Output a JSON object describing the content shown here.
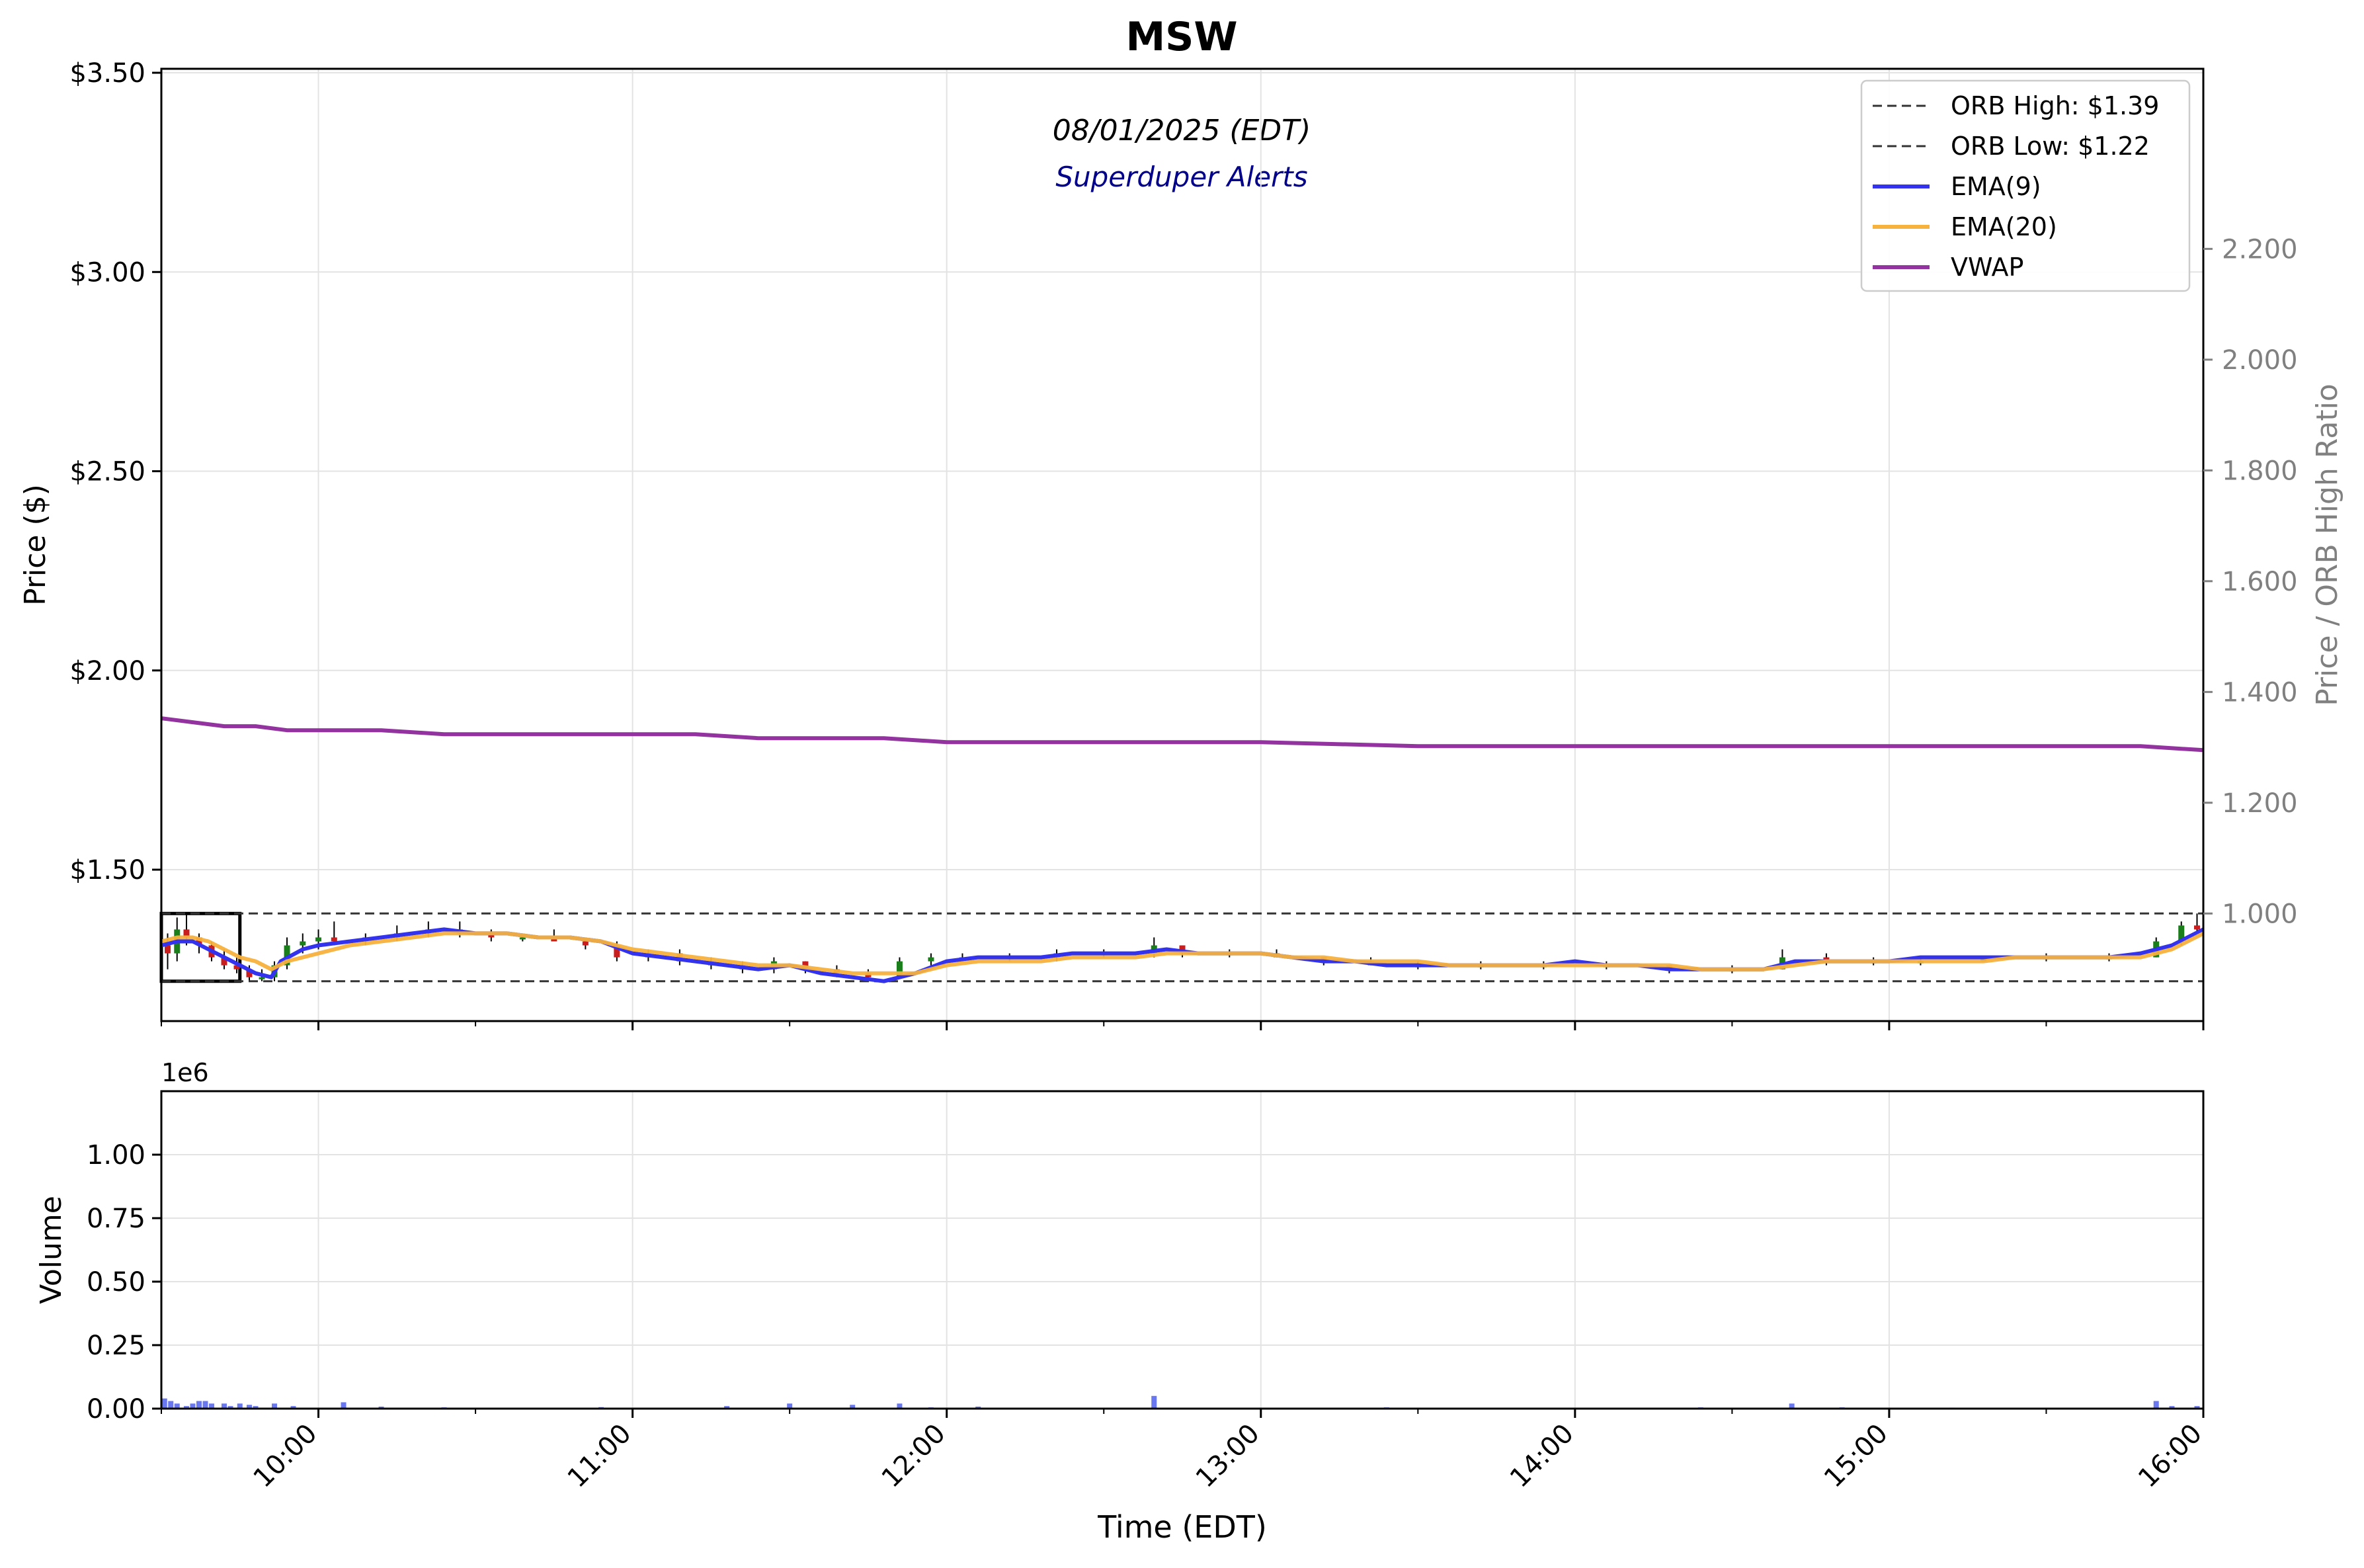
{
  "chart_data": {
    "type": "line",
    "title": "MSW",
    "subtitle": "08/01/2025 (EDT)",
    "subtitle2": "Superduper Alerts",
    "xlabel": "Time (EDT)",
    "ylabel": "Price ($)",
    "ylabel_right": "Price / ORB High Ratio",
    "volume_ylabel": "Volume",
    "volume_offset_label": "1e6",
    "x_tick_labels": [
      "10:00",
      "11:00",
      "12:00",
      "13:00",
      "14:00",
      "15:00",
      "16:00"
    ],
    "x_ticks_hours": [
      10,
      11,
      12,
      13,
      14,
      15,
      16
    ],
    "xlim_hours": [
      9.5,
      16.0
    ],
    "price_ylim": [
      1.12,
      3.51
    ],
    "price_ticks": [
      1.5,
      2.0,
      2.5,
      3.0,
      3.5
    ],
    "price_tick_labels": [
      "$1.50",
      "$2.00",
      "$2.50",
      "$3.00",
      "$3.50"
    ],
    "ratio_ticks": [
      1.0,
      1.2,
      1.4,
      1.6,
      1.8,
      2.0,
      2.2
    ],
    "ratio_tick_labels": [
      "1.000",
      "1.200",
      "1.400",
      "1.600",
      "1.800",
      "2.000",
      "2.200"
    ],
    "volume_ylim": [
      0,
      1.25
    ],
    "volume_ticks": [
      0,
      0.25,
      0.5,
      0.75,
      1.0
    ],
    "volume_tick_labels": [
      "0.00",
      "0.25",
      "0.50",
      "0.75",
      "1.00"
    ],
    "grid": true,
    "legend_position": "top-right",
    "orb_window_hours": [
      9.5,
      9.75
    ],
    "series": [
      {
        "name": "ORB High: $1.39",
        "style": "dashed",
        "color": "#333333",
        "points": [
          [
            9.5,
            1.39
          ],
          [
            16.0,
            1.39
          ]
        ]
      },
      {
        "name": "ORB Low: $1.22",
        "style": "dashed",
        "color": "#333333",
        "points": [
          [
            9.5,
            1.22
          ],
          [
            16.0,
            1.22
          ]
        ]
      },
      {
        "name": "EMA(9)",
        "style": "solid",
        "color": "#3333ee",
        "points": [
          [
            9.5,
            1.31
          ],
          [
            9.55,
            1.32
          ],
          [
            9.6,
            1.32
          ],
          [
            9.65,
            1.3
          ],
          [
            9.7,
            1.28
          ],
          [
            9.75,
            1.26
          ],
          [
            9.8,
            1.24
          ],
          [
            9.85,
            1.23
          ],
          [
            9.88,
            1.27
          ],
          [
            9.95,
            1.3
          ],
          [
            10.0,
            1.31
          ],
          [
            10.1,
            1.32
          ],
          [
            10.2,
            1.33
          ],
          [
            10.3,
            1.34
          ],
          [
            10.4,
            1.35
          ],
          [
            10.5,
            1.34
          ],
          [
            10.6,
            1.34
          ],
          [
            10.7,
            1.33
          ],
          [
            10.8,
            1.33
          ],
          [
            10.9,
            1.32
          ],
          [
            11.0,
            1.29
          ],
          [
            11.1,
            1.28
          ],
          [
            11.2,
            1.27
          ],
          [
            11.3,
            1.26
          ],
          [
            11.4,
            1.25
          ],
          [
            11.5,
            1.26
          ],
          [
            11.6,
            1.24
          ],
          [
            11.7,
            1.23
          ],
          [
            11.8,
            1.22
          ],
          [
            11.9,
            1.24
          ],
          [
            12.0,
            1.27
          ],
          [
            12.1,
            1.28
          ],
          [
            12.2,
            1.28
          ],
          [
            12.3,
            1.28
          ],
          [
            12.4,
            1.29
          ],
          [
            12.5,
            1.29
          ],
          [
            12.6,
            1.29
          ],
          [
            12.7,
            1.3
          ],
          [
            12.8,
            1.29
          ],
          [
            12.9,
            1.29
          ],
          [
            13.0,
            1.29
          ],
          [
            13.1,
            1.28
          ],
          [
            13.2,
            1.27
          ],
          [
            13.3,
            1.27
          ],
          [
            13.4,
            1.26
          ],
          [
            13.5,
            1.26
          ],
          [
            13.6,
            1.26
          ],
          [
            13.7,
            1.26
          ],
          [
            13.8,
            1.26
          ],
          [
            13.9,
            1.26
          ],
          [
            14.0,
            1.27
          ],
          [
            14.1,
            1.26
          ],
          [
            14.2,
            1.26
          ],
          [
            14.3,
            1.25
          ],
          [
            14.4,
            1.25
          ],
          [
            14.5,
            1.25
          ],
          [
            14.6,
            1.25
          ],
          [
            14.7,
            1.27
          ],
          [
            14.8,
            1.27
          ],
          [
            14.9,
            1.27
          ],
          [
            15.0,
            1.27
          ],
          [
            15.1,
            1.28
          ],
          [
            15.2,
            1.28
          ],
          [
            15.3,
            1.28
          ],
          [
            15.4,
            1.28
          ],
          [
            15.5,
            1.28
          ],
          [
            15.6,
            1.28
          ],
          [
            15.7,
            1.28
          ],
          [
            15.8,
            1.29
          ],
          [
            15.9,
            1.31
          ],
          [
            16.0,
            1.35
          ]
        ]
      },
      {
        "name": "EMA(20)",
        "style": "solid",
        "color": "#f7b13d",
        "points": [
          [
            9.5,
            1.32
          ],
          [
            9.55,
            1.33
          ],
          [
            9.6,
            1.33
          ],
          [
            9.65,
            1.32
          ],
          [
            9.7,
            1.3
          ],
          [
            9.75,
            1.28
          ],
          [
            9.8,
            1.27
          ],
          [
            9.85,
            1.25
          ],
          [
            9.9,
            1.27
          ],
          [
            10.0,
            1.29
          ],
          [
            10.1,
            1.31
          ],
          [
            10.2,
            1.32
          ],
          [
            10.3,
            1.33
          ],
          [
            10.4,
            1.34
          ],
          [
            10.5,
            1.34
          ],
          [
            10.6,
            1.34
          ],
          [
            10.7,
            1.33
          ],
          [
            10.8,
            1.33
          ],
          [
            10.9,
            1.32
          ],
          [
            11.0,
            1.3
          ],
          [
            11.1,
            1.29
          ],
          [
            11.2,
            1.28
          ],
          [
            11.3,
            1.27
          ],
          [
            11.4,
            1.26
          ],
          [
            11.5,
            1.26
          ],
          [
            11.6,
            1.25
          ],
          [
            11.7,
            1.24
          ],
          [
            11.8,
            1.24
          ],
          [
            11.9,
            1.24
          ],
          [
            12.0,
            1.26
          ],
          [
            12.1,
            1.27
          ],
          [
            12.2,
            1.27
          ],
          [
            12.3,
            1.27
          ],
          [
            12.4,
            1.28
          ],
          [
            12.5,
            1.28
          ],
          [
            12.6,
            1.28
          ],
          [
            12.7,
            1.29
          ],
          [
            12.8,
            1.29
          ],
          [
            12.9,
            1.29
          ],
          [
            13.0,
            1.29
          ],
          [
            13.1,
            1.28
          ],
          [
            13.2,
            1.28
          ],
          [
            13.3,
            1.27
          ],
          [
            13.4,
            1.27
          ],
          [
            13.5,
            1.27
          ],
          [
            13.6,
            1.26
          ],
          [
            13.7,
            1.26
          ],
          [
            13.8,
            1.26
          ],
          [
            13.9,
            1.26
          ],
          [
            14.0,
            1.26
          ],
          [
            14.1,
            1.26
          ],
          [
            14.2,
            1.26
          ],
          [
            14.3,
            1.26
          ],
          [
            14.4,
            1.25
          ],
          [
            14.5,
            1.25
          ],
          [
            14.6,
            1.25
          ],
          [
            14.7,
            1.26
          ],
          [
            14.8,
            1.27
          ],
          [
            14.9,
            1.27
          ],
          [
            15.0,
            1.27
          ],
          [
            15.1,
            1.27
          ],
          [
            15.2,
            1.27
          ],
          [
            15.3,
            1.27
          ],
          [
            15.4,
            1.28
          ],
          [
            15.5,
            1.28
          ],
          [
            15.6,
            1.28
          ],
          [
            15.7,
            1.28
          ],
          [
            15.8,
            1.28
          ],
          [
            15.9,
            1.3
          ],
          [
            16.0,
            1.34
          ]
        ]
      },
      {
        "name": "VWAP",
        "style": "solid",
        "color": "#9233a0",
        "points": [
          [
            9.5,
            1.88
          ],
          [
            9.6,
            1.87
          ],
          [
            9.7,
            1.86
          ],
          [
            9.8,
            1.86
          ],
          [
            9.9,
            1.85
          ],
          [
            10.0,
            1.85
          ],
          [
            10.2,
            1.85
          ],
          [
            10.4,
            1.84
          ],
          [
            10.6,
            1.84
          ],
          [
            10.8,
            1.84
          ],
          [
            11.0,
            1.84
          ],
          [
            11.2,
            1.84
          ],
          [
            11.4,
            1.83
          ],
          [
            11.6,
            1.83
          ],
          [
            11.8,
            1.83
          ],
          [
            12.0,
            1.82
          ],
          [
            12.2,
            1.82
          ],
          [
            12.4,
            1.82
          ],
          [
            12.6,
            1.82
          ],
          [
            12.65,
            1.82
          ],
          [
            12.7,
            1.82
          ],
          [
            13.0,
            1.82
          ],
          [
            13.5,
            1.81
          ],
          [
            14.0,
            1.81
          ],
          [
            14.5,
            1.81
          ],
          [
            15.0,
            1.81
          ],
          [
            15.5,
            1.81
          ],
          [
            15.8,
            1.81
          ],
          [
            16.0,
            1.8
          ]
        ]
      }
    ],
    "candles": [
      [
        9.52,
        1.31,
        1.34,
        1.25,
        1.29
      ],
      [
        9.55,
        1.29,
        1.38,
        1.27,
        1.35
      ],
      [
        9.58,
        1.35,
        1.39,
        1.31,
        1.33
      ],
      [
        9.62,
        1.33,
        1.34,
        1.29,
        1.31
      ],
      [
        9.66,
        1.31,
        1.32,
        1.27,
        1.28
      ],
      [
        9.7,
        1.28,
        1.3,
        1.25,
        1.26
      ],
      [
        9.74,
        1.26,
        1.28,
        1.24,
        1.25
      ],
      [
        9.78,
        1.25,
        1.26,
        1.22,
        1.23
      ],
      [
        9.82,
        1.23,
        1.25,
        1.22,
        1.23
      ],
      [
        9.86,
        1.23,
        1.27,
        1.22,
        1.26
      ],
      [
        9.9,
        1.26,
        1.33,
        1.25,
        1.31
      ],
      [
        9.95,
        1.31,
        1.34,
        1.29,
        1.32
      ],
      [
        10.0,
        1.32,
        1.35,
        1.3,
        1.33
      ],
      [
        10.05,
        1.33,
        1.37,
        1.31,
        1.32
      ],
      [
        10.15,
        1.32,
        1.34,
        1.31,
        1.33
      ],
      [
        10.25,
        1.33,
        1.36,
        1.32,
        1.34
      ],
      [
        10.35,
        1.34,
        1.37,
        1.33,
        1.35
      ],
      [
        10.45,
        1.35,
        1.37,
        1.33,
        1.34
      ],
      [
        10.55,
        1.34,
        1.35,
        1.32,
        1.33
      ],
      [
        10.65,
        1.33,
        1.34,
        1.32,
        1.33
      ],
      [
        10.75,
        1.33,
        1.35,
        1.32,
        1.32
      ],
      [
        10.85,
        1.32,
        1.33,
        1.3,
        1.31
      ],
      [
        10.95,
        1.31,
        1.32,
        1.27,
        1.28
      ],
      [
        11.05,
        1.28,
        1.3,
        1.27,
        1.29
      ],
      [
        11.15,
        1.29,
        1.3,
        1.26,
        1.27
      ],
      [
        11.25,
        1.27,
        1.28,
        1.25,
        1.26
      ],
      [
        11.35,
        1.26,
        1.27,
        1.24,
        1.25
      ],
      [
        11.45,
        1.25,
        1.28,
        1.24,
        1.27
      ],
      [
        11.55,
        1.27,
        1.27,
        1.24,
        1.25
      ],
      [
        11.65,
        1.25,
        1.26,
        1.23,
        1.24
      ],
      [
        11.75,
        1.24,
        1.25,
        1.22,
        1.23
      ],
      [
        11.85,
        1.23,
        1.28,
        1.23,
        1.27
      ],
      [
        11.95,
        1.27,
        1.29,
        1.26,
        1.28
      ],
      [
        12.05,
        1.28,
        1.29,
        1.27,
        1.28
      ],
      [
        12.2,
        1.28,
        1.29,
        1.27,
        1.28
      ],
      [
        12.35,
        1.28,
        1.3,
        1.27,
        1.29
      ],
      [
        12.5,
        1.29,
        1.3,
        1.28,
        1.29
      ],
      [
        12.66,
        1.29,
        1.33,
        1.28,
        1.31
      ],
      [
        12.75,
        1.31,
        1.31,
        1.28,
        1.29
      ],
      [
        12.9,
        1.29,
        1.3,
        1.28,
        1.29
      ],
      [
        13.05,
        1.29,
        1.3,
        1.28,
        1.28
      ],
      [
        13.2,
        1.28,
        1.28,
        1.26,
        1.27
      ],
      [
        13.35,
        1.27,
        1.28,
        1.26,
        1.26
      ],
      [
        13.5,
        1.26,
        1.27,
        1.25,
        1.26
      ],
      [
        13.7,
        1.26,
        1.27,
        1.25,
        1.26
      ],
      [
        13.9,
        1.26,
        1.27,
        1.25,
        1.26
      ],
      [
        14.1,
        1.26,
        1.27,
        1.25,
        1.26
      ],
      [
        14.3,
        1.26,
        1.26,
        1.24,
        1.25
      ],
      [
        14.5,
        1.25,
        1.26,
        1.24,
        1.25
      ],
      [
        14.66,
        1.25,
        1.3,
        1.25,
        1.28
      ],
      [
        14.8,
        1.28,
        1.29,
        1.26,
        1.27
      ],
      [
        14.95,
        1.27,
        1.28,
        1.26,
        1.27
      ],
      [
        15.1,
        1.27,
        1.28,
        1.26,
        1.27
      ],
      [
        15.3,
        1.27,
        1.28,
        1.27,
        1.28
      ],
      [
        15.5,
        1.28,
        1.29,
        1.27,
        1.28
      ],
      [
        15.7,
        1.28,
        1.29,
        1.27,
        1.28
      ],
      [
        15.85,
        1.28,
        1.33,
        1.28,
        1.32
      ],
      [
        15.93,
        1.32,
        1.37,
        1.31,
        1.36
      ],
      [
        15.98,
        1.36,
        1.39,
        1.34,
        1.35
      ]
    ],
    "volume_unit": "1e6",
    "volume": [
      [
        9.51,
        0.04
      ],
      [
        9.53,
        0.03
      ],
      [
        9.55,
        0.02
      ],
      [
        9.58,
        0.01
      ],
      [
        9.6,
        0.02
      ],
      [
        9.62,
        0.03
      ],
      [
        9.64,
        0.03
      ],
      [
        9.66,
        0.02
      ],
      [
        9.7,
        0.02
      ],
      [
        9.72,
        0.01
      ],
      [
        9.75,
        0.02
      ],
      [
        9.78,
        0.015
      ],
      [
        9.8,
        0.01
      ],
      [
        9.86,
        0.02
      ],
      [
        9.92,
        0.01
      ],
      [
        10.08,
        0.025
      ],
      [
        10.2,
        0.008
      ],
      [
        10.4,
        0.005
      ],
      [
        10.9,
        0.006
      ],
      [
        11.3,
        0.01
      ],
      [
        11.5,
        0.02
      ],
      [
        11.7,
        0.015
      ],
      [
        11.85,
        0.02
      ],
      [
        11.95,
        0.005
      ],
      [
        12.1,
        0.008
      ],
      [
        12.66,
        0.05
      ],
      [
        13.4,
        0.005
      ],
      [
        14.4,
        0.005
      ],
      [
        14.69,
        0.02
      ],
      [
        14.85,
        0.005
      ],
      [
        15.2,
        0.004
      ],
      [
        15.85,
        0.03
      ],
      [
        15.9,
        0.01
      ],
      [
        15.98,
        0.01
      ]
    ]
  }
}
